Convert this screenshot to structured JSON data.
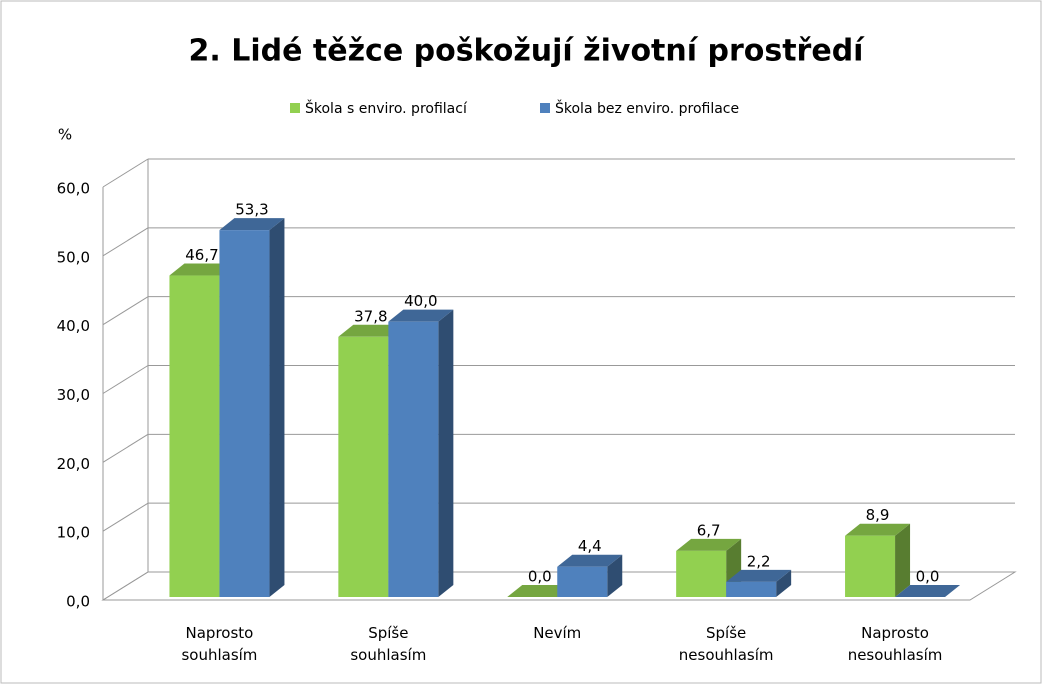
{
  "chart_data": {
    "type": "bar3d",
    "title": "2. Lidé těžce poškožují životní prostředí",
    "y_label": "%",
    "categories": [
      "Naprosto souhlasím",
      "Spíše souhlasím",
      "Nevím",
      "Spíše nesouhlasím",
      "Naprosto nesouhlasím"
    ],
    "series": [
      {
        "name": "Škola s enviro. profilací",
        "color": "#92d050",
        "values": [
          46.7,
          37.8,
          0,
          6.7,
          8.9
        ],
        "value_labels": [
          "46,7",
          "37,8",
          "0,0",
          "6,7",
          "8,9"
        ]
      },
      {
        "name": "Škola bez enviro. profilace",
        "color": "#4f81bd",
        "values": [
          53.3,
          40.0,
          4.4,
          2.2,
          0
        ],
        "value_labels": [
          "53,3",
          "40,0",
          "4,4",
          "2,2",
          "0,0"
        ]
      }
    ],
    "ylim": [
      0,
      60
    ],
    "yticks": [
      {
        "value": 0,
        "label": "0,0"
      },
      {
        "value": 10,
        "label": "10,0"
      },
      {
        "value": 20,
        "label": "20,0"
      },
      {
        "value": 30,
        "label": "30,0"
      },
      {
        "value": 40,
        "label": "40,0"
      },
      {
        "value": 50,
        "label": "50,0"
      },
      {
        "value": 60,
        "label": "60,0"
      }
    ],
    "grid": true,
    "legend": "top"
  }
}
